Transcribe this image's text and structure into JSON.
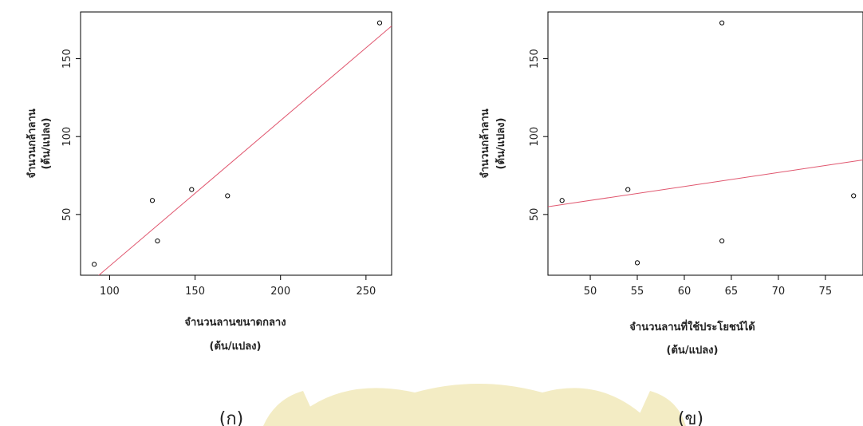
{
  "watermark": {
    "color": "#f3ecc4"
  },
  "chart_data": [
    {
      "type": "scatter",
      "caption": "(ก)",
      "xlabel_lines": [
        "จำนวนลานขนาดกลาง",
        "(ต้น/แปลง)"
      ],
      "ylabel_lines": [
        "จำนวนกล้าลาน",
        "(ต้น/แปลง)"
      ],
      "xlim": [
        83,
        265
      ],
      "ylim": [
        11,
        180
      ],
      "xticks": [
        100,
        150,
        200,
        250
      ],
      "yticks": [
        50,
        100,
        150
      ],
      "points": [
        {
          "x": 91,
          "y": 18
        },
        {
          "x": 125,
          "y": 59
        },
        {
          "x": 128,
          "y": 33
        },
        {
          "x": 148,
          "y": 66
        },
        {
          "x": 169,
          "y": 62
        },
        {
          "x": 258,
          "y": 173
        }
      ],
      "fit_line": {
        "x": [
          83,
          265
        ],
        "y": [
          1,
          171
        ]
      },
      "point_color": "#000000",
      "line_color": "#e0566e"
    },
    {
      "type": "scatter",
      "caption": "(ข)",
      "xlabel_lines": [
        "จำนวนลานที่ใช้ประโยชน์ได้",
        "(ต้น/แปลง)"
      ],
      "ylabel_lines": [
        "จำนวนกล้าลาน",
        "(ต้น/แปลง)"
      ],
      "xlim": [
        45.5,
        79
      ],
      "ylim": [
        11,
        180
      ],
      "xticks": [
        50,
        55,
        60,
        65,
        70,
        75
      ],
      "yticks": [
        50,
        100,
        150
      ],
      "points": [
        {
          "x": 47,
          "y": 59
        },
        {
          "x": 54,
          "y": 66
        },
        {
          "x": 55,
          "y": 19
        },
        {
          "x": 64,
          "y": 173
        },
        {
          "x": 64,
          "y": 33
        },
        {
          "x": 78,
          "y": 62
        }
      ],
      "fit_line": {
        "x": [
          45.5,
          79
        ],
        "y": [
          55,
          85
        ]
      },
      "point_color": "#000000",
      "line_color": "#e0566e"
    }
  ]
}
